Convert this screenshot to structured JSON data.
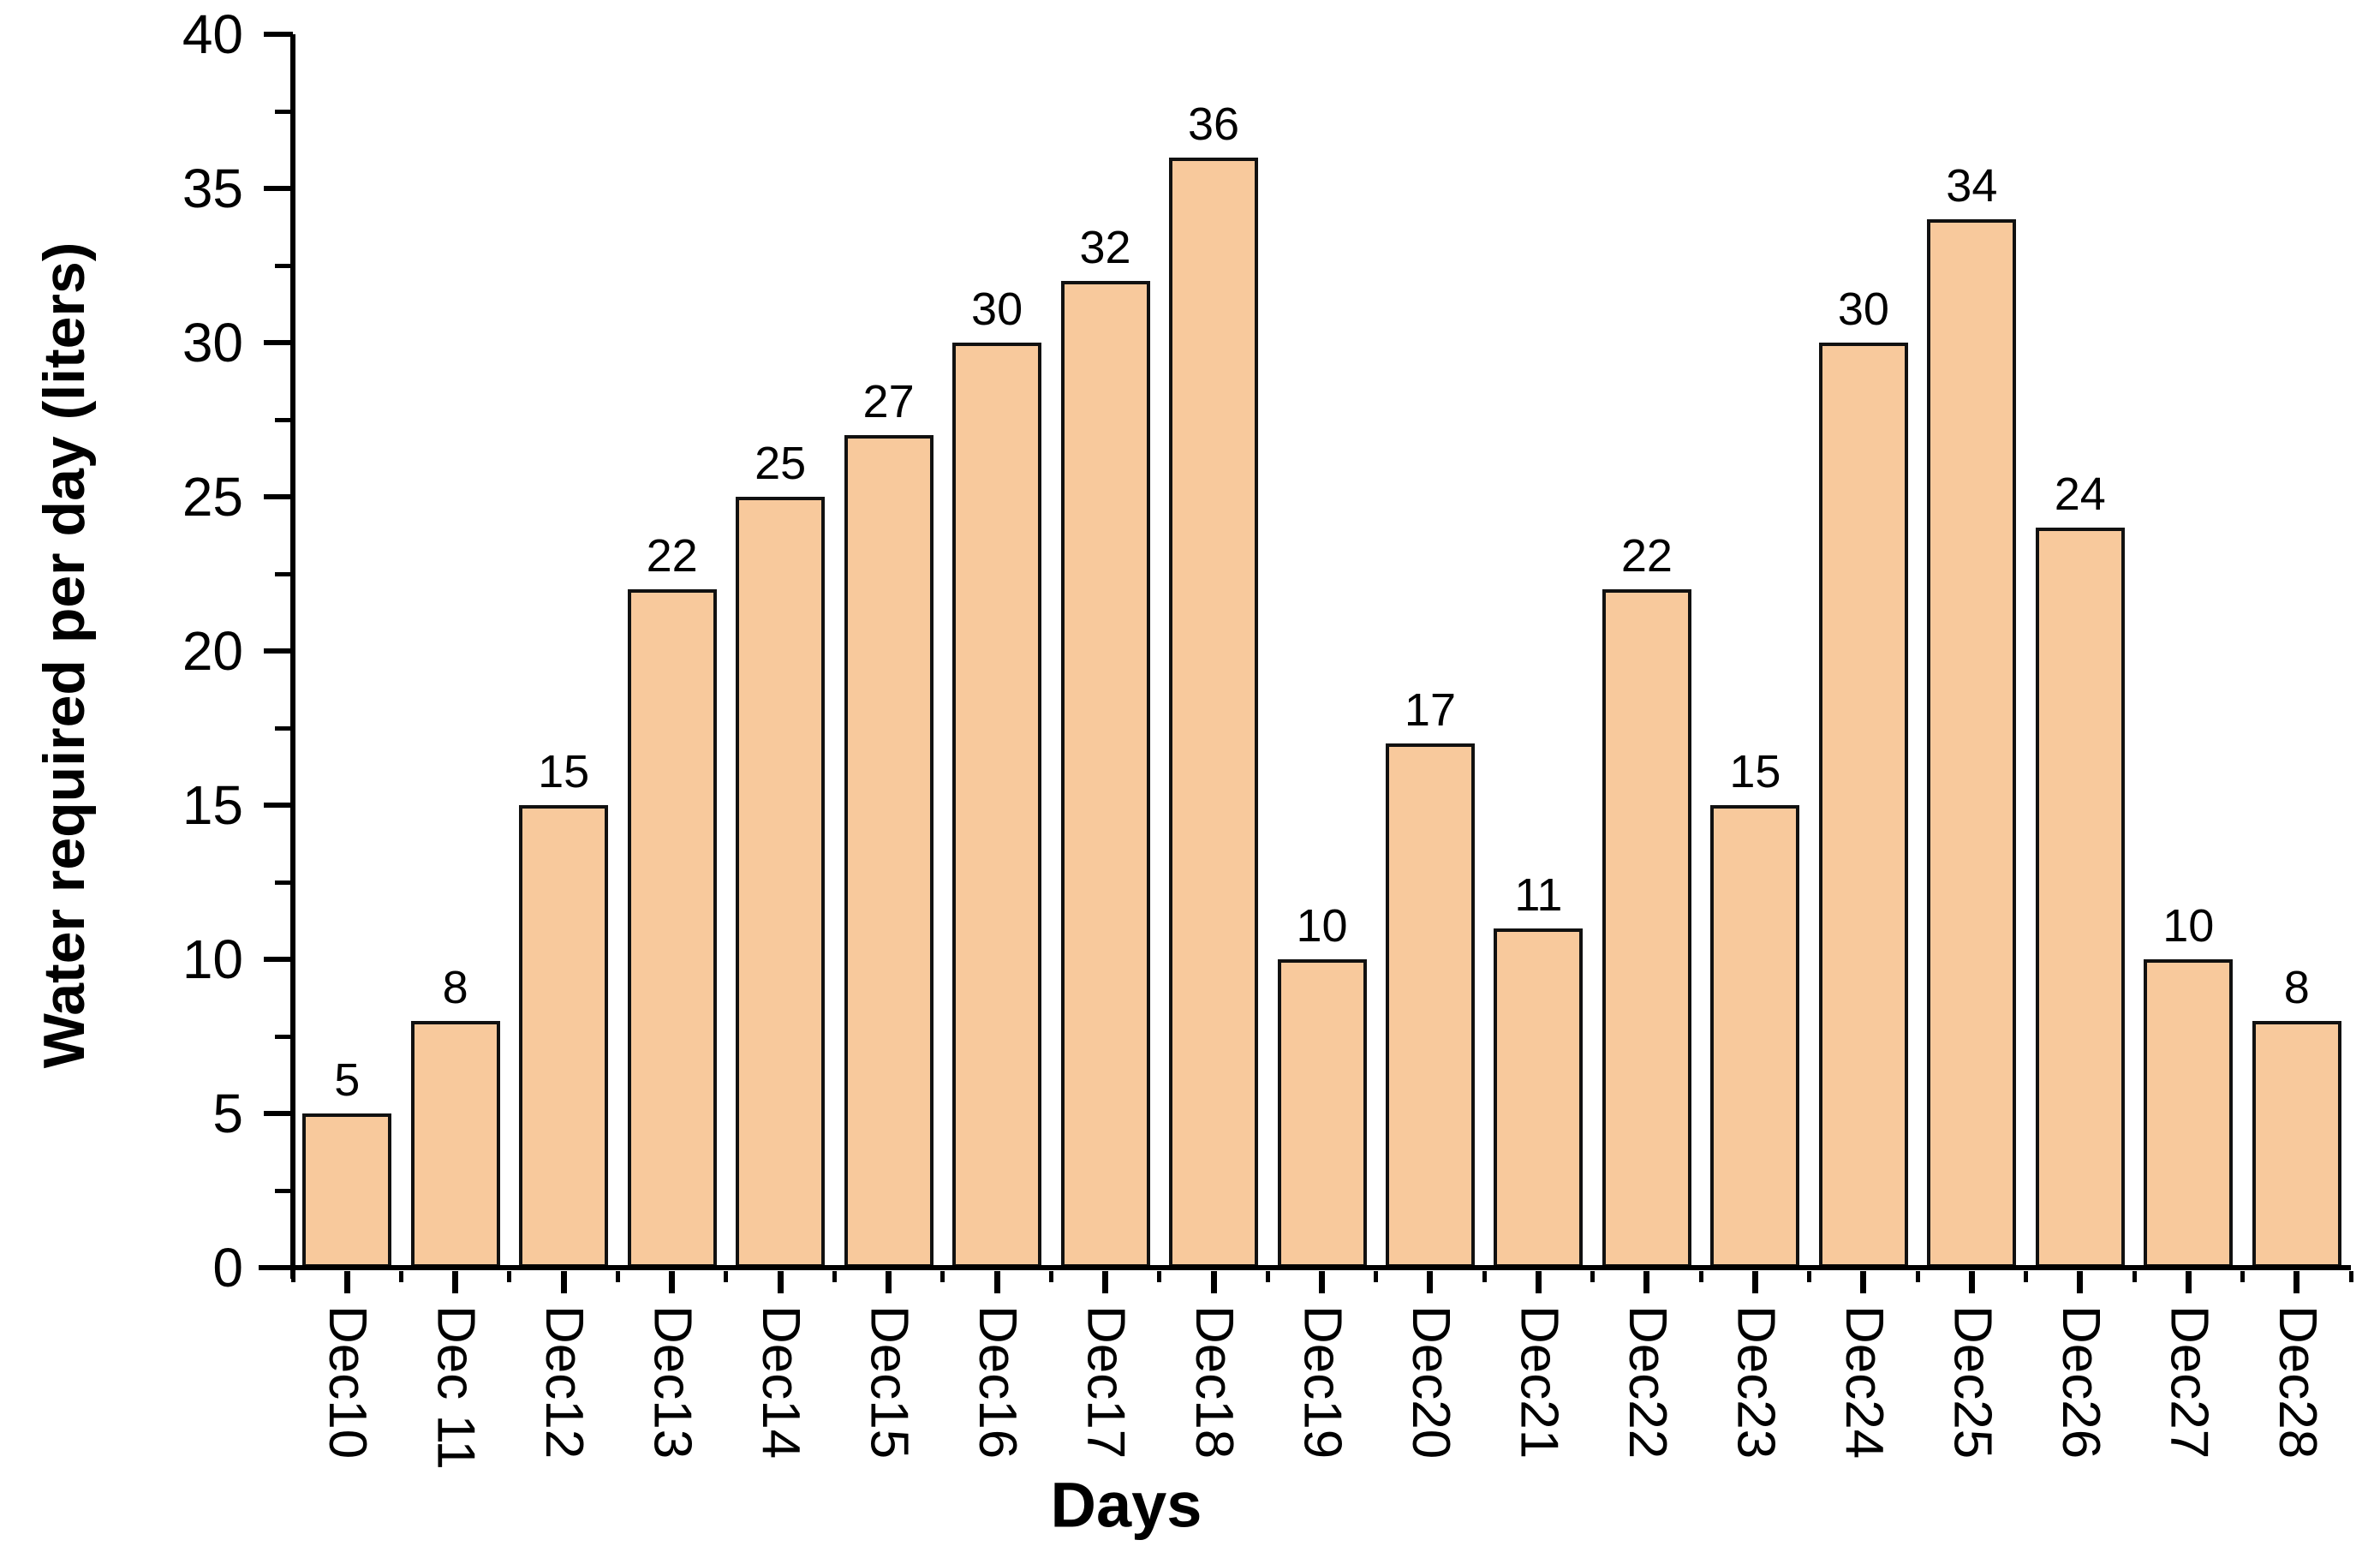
{
  "figure": {
    "background_color": "#ffffff",
    "text_color": "#000000",
    "axis_color": "#000000"
  },
  "chart_data": {
    "type": "bar",
    "title": "",
    "xlabel": "Days",
    "ylabel": "Water required per day (liters)",
    "categories": [
      "Dec10",
      "Dec 11",
      "Dec12",
      "Dec13",
      "Dec14",
      "Dec15",
      "Dec16",
      "Dec17",
      "Dec18",
      "Dec19",
      "Dec20",
      "Dec21",
      "Dec22",
      "Dec23",
      "Dec24",
      "Dec25",
      "Dec26",
      "Dec27",
      "Dec28"
    ],
    "values": [
      5,
      8,
      15,
      22,
      25,
      27,
      30,
      32,
      36,
      10,
      17,
      11,
      22,
      15,
      30,
      34,
      24,
      10,
      8
    ],
    "show_value_labels": true,
    "ylim": [
      0,
      40
    ],
    "y_major_tick_step": 5,
    "y_minor_tick_step": 2.5,
    "y_tick_labels": [
      "0",
      "5",
      "10",
      "15",
      "20",
      "25",
      "30",
      "35",
      "40"
    ],
    "grid": false,
    "legend": null,
    "bar_fill_color": "#F8C99C",
    "bar_edge_color": "#111111"
  }
}
